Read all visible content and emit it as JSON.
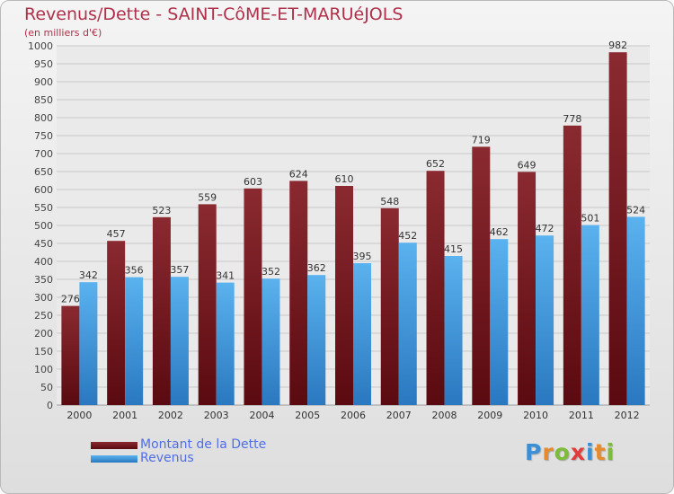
{
  "header": {
    "title": "Revenus/Dette - SAINT-CôME-ET-MARUéJOLS",
    "subtitle": "(en milliers d'€)"
  },
  "legend": {
    "items": [
      {
        "label": "Montant de la Dette",
        "color": "#7a1a22"
      },
      {
        "label": "Revenus",
        "color": "#4aa3e6"
      }
    ]
  },
  "logo": {
    "letters": [
      "P",
      "r",
      "o",
      "x",
      "i",
      "t",
      "i"
    ],
    "colors": [
      "#3b8fd6",
      "#e68a2e",
      "#7dbb3b",
      "#e23b3b",
      "#3b8fd6",
      "#e68a2e",
      "#7dbb3b"
    ]
  },
  "chart_data": {
    "type": "bar",
    "categories": [
      "2000",
      "2001",
      "2002",
      "2003",
      "2004",
      "2005",
      "2006",
      "2007",
      "2008",
      "2009",
      "2010",
      "2011",
      "2012"
    ],
    "series": [
      {
        "name": "Montant de la Dette",
        "values": [
          276,
          457,
          523,
          559,
          603,
          624,
          610,
          548,
          652,
          719,
          649,
          778,
          982
        ]
      },
      {
        "name": "Revenus",
        "values": [
          342,
          356,
          357,
          341,
          352,
          362,
          395,
          452,
          415,
          462,
          472,
          501,
          524
        ]
      }
    ],
    "ylim": [
      0,
      1000
    ],
    "ytick_step": 50,
    "grid": true,
    "legend_position": "bottom-left",
    "colors": {
      "dette_top": "#8a2a30",
      "dette_bottom": "#5a0a10",
      "revenus_top": "#5ab2ee",
      "revenus_bottom": "#2a78c0"
    }
  }
}
